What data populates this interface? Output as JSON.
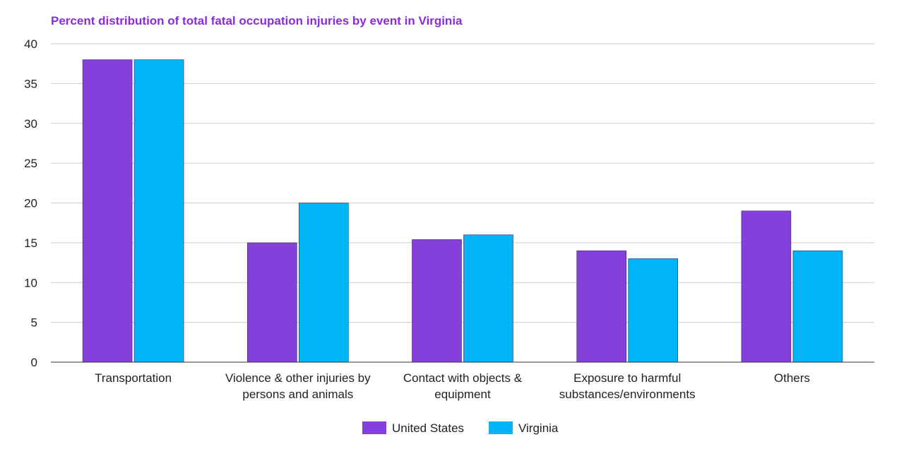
{
  "chart_data": {
    "type": "bar",
    "title": "Percent distribution of total fatal occupation injuries by event in Virginia",
    "xlabel": "",
    "ylabel": "",
    "ylim": [
      0,
      40
    ],
    "yticks": [
      0,
      5,
      10,
      15,
      20,
      25,
      30,
      35,
      40
    ],
    "grid": true,
    "legend_position": "bottom",
    "categories": [
      [
        "Transportation"
      ],
      [
        "Violence & other injuries by",
        "persons and animals"
      ],
      [
        "Contact with objects &",
        "equipment"
      ],
      [
        "Exposure to harmful",
        "substances/environments"
      ],
      [
        "Others"
      ]
    ],
    "series": [
      {
        "name": "United States",
        "color": "#8540DB",
        "values": [
          38,
          15,
          15.4,
          14,
          19
        ]
      },
      {
        "name": "Virginia",
        "color": "#00B4F5",
        "values": [
          38,
          20,
          16,
          13,
          14
        ]
      }
    ],
    "title_color": "#8A2BE2"
  }
}
